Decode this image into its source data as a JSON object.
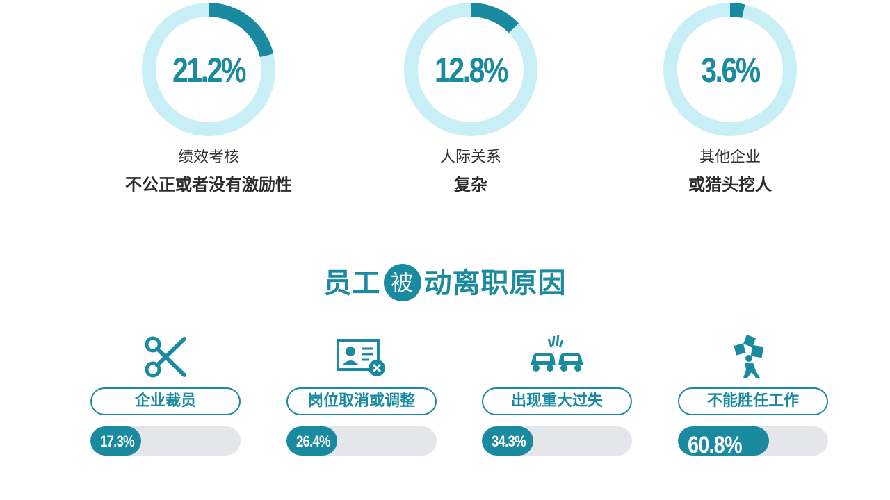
{
  "donuts": [
    {
      "value": 21.2,
      "pct_label": "21.2%",
      "subtitle": "绩效考核",
      "title": "不公正或者没有激励性"
    },
    {
      "value": 12.8,
      "pct_label": "12.8%",
      "subtitle": "人际关系",
      "title": "复杂"
    },
    {
      "value": 3.6,
      "pct_label": "3.6%",
      "subtitle": "其他企业",
      "title": "或猎头挖人"
    }
  ],
  "section": {
    "title_left": "员工",
    "title_circle": "被",
    "title_right": "动离职原因"
  },
  "reasons": [
    {
      "icon": "scissors-icon",
      "label": "企业裁员",
      "value": 17.3,
      "pct_label": "17.3%"
    },
    {
      "icon": "id-card-remove-icon",
      "label": "岗位取消或调整",
      "value": 26.4,
      "pct_label": "26.4%"
    },
    {
      "icon": "car-crash-icon",
      "label": "出现重大过失",
      "value": 34.3,
      "pct_label": "34.3%"
    },
    {
      "icon": "falling-boxes-icon",
      "label": "不能胜任工作",
      "value": 60.8,
      "pct_label": "60.8%"
    }
  ],
  "colors": {
    "accent": "#1a8aa1",
    "ring_light": "#c8eef6",
    "track": "#e4e6ea"
  }
}
